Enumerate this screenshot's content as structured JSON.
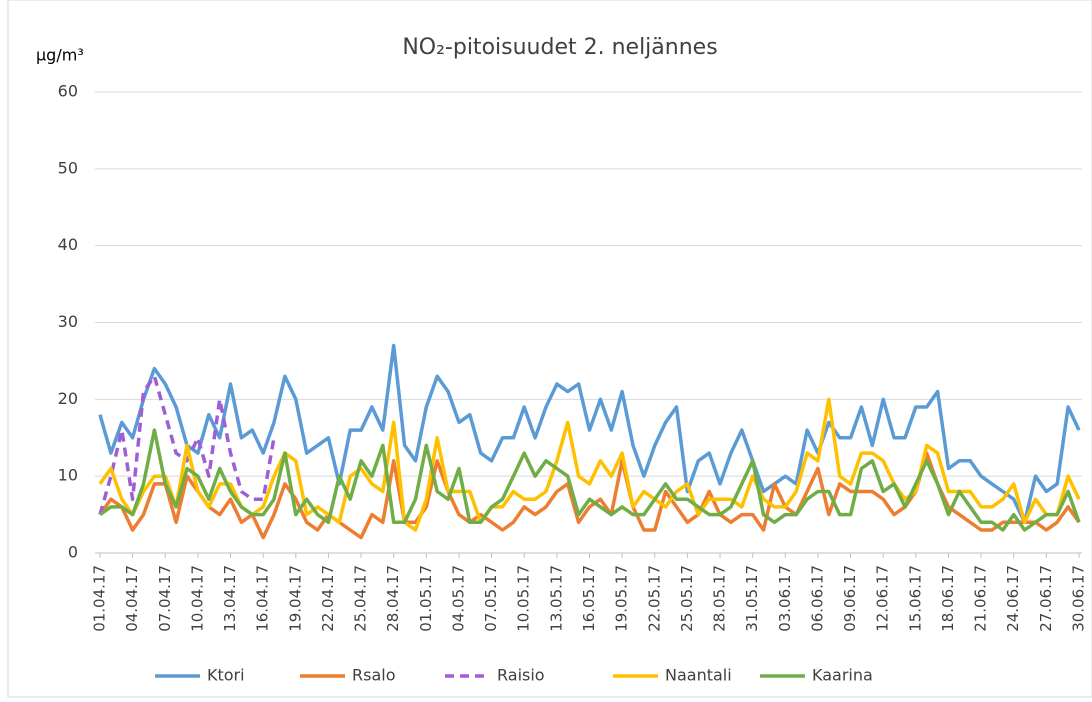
{
  "chart_data": {
    "type": "line",
    "title": "NO₂-pitoisuudet 2. neljännes",
    "y_label": "µg/m³",
    "categories": [
      "01.04.17",
      null,
      null,
      "04.04.17",
      null,
      null,
      "07.04.17",
      null,
      null,
      "10.04.17",
      null,
      null,
      "13.04.17",
      null,
      null,
      "16.04.17",
      null,
      null,
      "19.04.17",
      null,
      null,
      "22.04.17",
      null,
      null,
      "25.04.17",
      null,
      null,
      "28.04.17",
      null,
      null,
      "01.05.17",
      null,
      null,
      "04.05.17",
      null,
      null,
      "07.05.17",
      null,
      null,
      "10.05.17",
      null,
      null,
      "13.05.17",
      null,
      null,
      "16.05.17",
      null,
      null,
      "19.05.17",
      null,
      null,
      "22.05.17",
      null,
      null,
      "25.05.17",
      null,
      null,
      "28.05.17",
      null,
      null,
      "31.05.17",
      null,
      null,
      "03.06.17",
      null,
      null,
      "06.06.17",
      null,
      null,
      "09.06.17",
      null,
      null,
      "12.06.17",
      null,
      null,
      "15.06.17",
      null,
      null,
      "18.06.17",
      null,
      null,
      "21.06.17",
      null,
      null,
      "24.06.17",
      null,
      null,
      "27.06.17",
      null,
      null,
      "30.06.17"
    ],
    "series": [
      {
        "name": "Ktori",
        "color": "#5b9bd5",
        "dashed": false,
        "values": [
          18,
          13,
          17,
          15,
          20,
          24,
          22,
          19,
          14,
          13,
          18,
          15,
          22,
          15,
          16,
          13,
          17,
          23,
          20,
          13,
          14,
          15,
          9,
          16,
          16,
          19,
          16,
          27,
          14,
          12,
          19,
          23,
          21,
          17,
          18,
          13,
          12,
          15,
          15,
          19,
          15,
          19,
          22,
          21,
          22,
          16,
          20,
          16,
          21,
          14,
          10,
          14,
          17,
          19,
          8,
          12,
          13,
          9,
          13,
          16,
          12,
          8,
          9,
          10,
          9,
          16,
          13,
          17,
          15,
          15,
          19,
          14,
          20,
          15,
          15,
          19,
          19,
          21,
          11,
          12,
          12,
          10,
          9,
          8,
          7,
          4,
          10,
          8,
          9,
          19,
          16
        ]
      },
      {
        "name": "Rsalo",
        "color": "#ed7d31",
        "dashed": false,
        "values": [
          5,
          7,
          6,
          3,
          5,
          9,
          9,
          4,
          10,
          8,
          6,
          5,
          7,
          4,
          5,
          2,
          5,
          9,
          7,
          4,
          3,
          5,
          4,
          3,
          2,
          5,
          4,
          12,
          4,
          4,
          6,
          12,
          8,
          5,
          4,
          5,
          4,
          3,
          4,
          6,
          5,
          6,
          8,
          9,
          4,
          6,
          7,
          5,
          12,
          6,
          3,
          3,
          8,
          6,
          4,
          5,
          8,
          5,
          4,
          5,
          5,
          3,
          9,
          6,
          5,
          8,
          11,
          5,
          9,
          8,
          8,
          8,
          7,
          5,
          6,
          8,
          13,
          9,
          6,
          5,
          4,
          3,
          3,
          4,
          4,
          4,
          4,
          3,
          4,
          6,
          4
        ]
      },
      {
        "name": "Raisio",
        "color": "#9e5fd6",
        "dashed": true,
        "values": [
          5,
          10,
          16,
          7,
          21,
          23,
          18,
          13,
          12,
          15,
          10,
          20,
          13,
          8,
          7,
          7,
          15,
          null,
          null,
          null,
          null,
          null,
          null,
          null,
          null,
          null,
          null,
          null,
          null,
          null,
          null,
          null,
          null,
          null,
          null,
          null,
          null,
          null,
          null,
          null,
          null,
          null,
          null,
          null,
          null,
          null,
          null,
          null,
          null,
          null,
          null,
          null,
          null,
          null,
          null,
          null,
          null,
          null,
          null,
          null,
          null,
          null,
          null,
          null,
          null,
          null,
          null,
          null,
          null,
          null,
          null,
          null,
          null,
          null,
          null,
          null,
          null,
          null,
          null,
          null,
          null,
          null,
          null,
          null,
          null,
          null,
          null,
          null,
          null,
          null,
          null
        ]
      },
      {
        "name": "Naantali",
        "color": "#ffc000",
        "dashed": false,
        "values": [
          9,
          11,
          7,
          5,
          8,
          10,
          10,
          6,
          14,
          8,
          6,
          9,
          9,
          6,
          5,
          6,
          10,
          13,
          12,
          5,
          6,
          5,
          4,
          10,
          11,
          9,
          8,
          17,
          4,
          3,
          7,
          15,
          8,
          8,
          8,
          4,
          6,
          6,
          8,
          7,
          7,
          8,
          12,
          17,
          10,
          9,
          12,
          10,
          13,
          6,
          8,
          7,
          6,
          8,
          9,
          5,
          7,
          7,
          7,
          6,
          10,
          7,
          6,
          6,
          8,
          13,
          12,
          20,
          10,
          9,
          13,
          13,
          12,
          9,
          7,
          8,
          14,
          13,
          8,
          8,
          8,
          6,
          6,
          7,
          9,
          4,
          7,
          5,
          5,
          10,
          7
        ]
      },
      {
        "name": "Kaarina",
        "color": "#70ad47",
        "dashed": false,
        "values": [
          5,
          6,
          6,
          5,
          9,
          16,
          9,
          6,
          11,
          10,
          7,
          11,
          8,
          6,
          5,
          5,
          7,
          13,
          5,
          7,
          5,
          4,
          10,
          7,
          12,
          10,
          14,
          4,
          4,
          7,
          14,
          8,
          7,
          11,
          4,
          4,
          6,
          7,
          10,
          13,
          10,
          12,
          11,
          10,
          5,
          7,
          6,
          5,
          6,
          5,
          5,
          7,
          9,
          7,
          7,
          6,
          5,
          5,
          6,
          9,
          12,
          5,
          4,
          5,
          5,
          7,
          8,
          8,
          5,
          5,
          11,
          12,
          8,
          9,
          6,
          9,
          12,
          9,
          5,
          8,
          6,
          4,
          4,
          3,
          5,
          3,
          4,
          5,
          5,
          8,
          4
        ]
      }
    ],
    "ylim": [
      0,
      60
    ],
    "yticks": [
      0,
      10,
      20,
      30,
      40,
      50,
      60
    ],
    "grid": true
  }
}
